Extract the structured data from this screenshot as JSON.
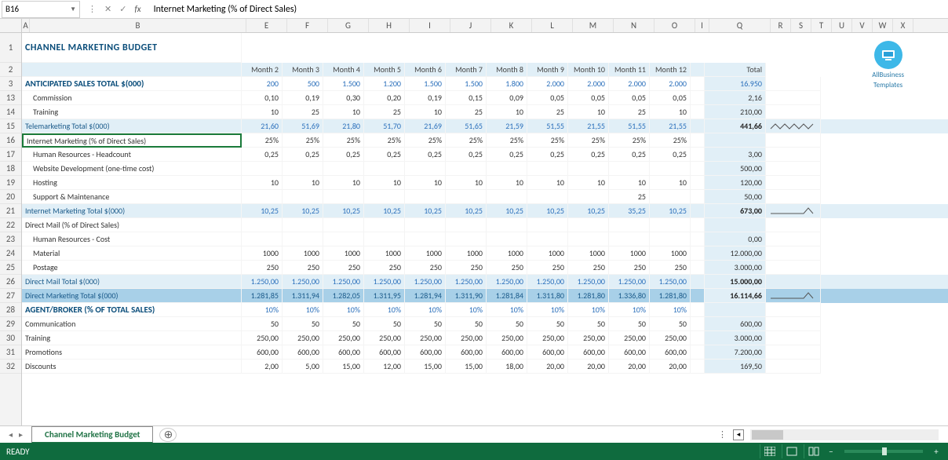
{
  "name_box": "B16",
  "formula_text": "Internet Marketing (% of Direct Sales)",
  "columns": [
    "A",
    "B",
    "E",
    "F",
    "G",
    "H",
    "I",
    "J",
    "K",
    "L",
    "M",
    "N",
    "O",
    "I",
    "Q",
    "R",
    "S",
    "T",
    "U",
    "V",
    "W",
    "X"
  ],
  "col_widths": {
    "A": 10,
    "B": 276,
    "month": 52,
    "gap": 18,
    "total": 78,
    "spark": 70,
    "narrow": 26
  },
  "row_numbers": [
    "1",
    "2",
    "3",
    "13",
    "14",
    "15",
    "16",
    "17",
    "18",
    "19",
    "20",
    "21",
    "22",
    "23",
    "24",
    "25",
    "26",
    "27",
    "28",
    "29",
    "30",
    "31",
    "32"
  ],
  "title": "CHANNEL MARKETING BUDGET",
  "month_headers": [
    "Month 2",
    "Month 3",
    "Month 4",
    "Month 5",
    "Month 6",
    "Month 7",
    "Month 8",
    "Month 9",
    "Month 10",
    "Month 11",
    "Month 12"
  ],
  "total_header": "Total",
  "rows": [
    {
      "label": "ANTICIPATED SALES TOTAL $(000)",
      "style": "section",
      "vals": [
        "200",
        "500",
        "1.500",
        "1.200",
        "1.500",
        "1.500",
        "1.800",
        "2.000",
        "2.000",
        "2.000",
        "2.000"
      ],
      "total": "16.950",
      "blue": true
    },
    {
      "label": "Commission",
      "indent": 1,
      "vals": [
        "0,10",
        "0,19",
        "0,30",
        "0,20",
        "0,19",
        "0,15",
        "0,09",
        "0,05",
        "0,05",
        "0,05",
        "0,05"
      ],
      "total": "2,16"
    },
    {
      "label": "Training",
      "indent": 1,
      "vals": [
        "10",
        "25",
        "10",
        "25",
        "10",
        "25",
        "10",
        "25",
        "10",
        "25",
        "10"
      ],
      "total": "210,00"
    },
    {
      "label": "Telemarketing Total $(000)",
      "style": "subtotal",
      "vals": [
        "21,60",
        "51,69",
        "21,80",
        "51,70",
        "21,69",
        "51,65",
        "21,59",
        "51,55",
        "21,55",
        "51,55",
        "21,55"
      ],
      "total": "441,66",
      "total_bold": true,
      "spark": "zigzag"
    },
    {
      "label": "Internet Marketing (% of Direct Sales)",
      "style": "selected",
      "vals": [
        "25%",
        "25%",
        "25%",
        "25%",
        "25%",
        "25%",
        "25%",
        "25%",
        "25%",
        "25%",
        "25%"
      ],
      "total": ""
    },
    {
      "label": "Human Resources - Headcount",
      "indent": 1,
      "vals": [
        "0,25",
        "0,25",
        "0,25",
        "0,25",
        "0,25",
        "0,25",
        "0,25",
        "0,25",
        "0,25",
        "0,25",
        "0,25"
      ],
      "total": "3,00"
    },
    {
      "label": "Website Development (one-time cost)",
      "indent": 1,
      "vals": [
        "",
        "",
        "",
        "",
        "",
        "",
        "",
        "",
        "",
        "",
        ""
      ],
      "total": "500,00"
    },
    {
      "label": "Hosting",
      "indent": 1,
      "vals": [
        "10",
        "10",
        "10",
        "10",
        "10",
        "10",
        "10",
        "10",
        "10",
        "10",
        "10"
      ],
      "total": "120,00"
    },
    {
      "label": "Support & Maintenance",
      "indent": 1,
      "vals": [
        "",
        "",
        "",
        "",
        "",
        "",
        "",
        "",
        "",
        "25",
        ""
      ],
      "total": "50,00"
    },
    {
      "label": "Internet Marketing Total $(000)",
      "style": "subtotal",
      "vals": [
        "10,25",
        "10,25",
        "10,25",
        "10,25",
        "10,25",
        "10,25",
        "10,25",
        "10,25",
        "10,25",
        "35,25",
        "10,25"
      ],
      "total": "673,00",
      "total_bold": true,
      "spark": "flat-spike"
    },
    {
      "label": "Direct Mail (% of Direct Sales)",
      "vals": [
        "",
        "",
        "",
        "",
        "",
        "",
        "",
        "",
        "",
        "",
        ""
      ],
      "total": ""
    },
    {
      "label": "Human Resources - Cost",
      "indent": 1,
      "vals": [
        "",
        "",
        "",
        "",
        "",
        "",
        "",
        "",
        "",
        "",
        ""
      ],
      "total": "0,00"
    },
    {
      "label": "Material",
      "indent": 1,
      "vals": [
        "1000",
        "1000",
        "1000",
        "1000",
        "1000",
        "1000",
        "1000",
        "1000",
        "1000",
        "1000",
        "1000"
      ],
      "total": "12.000,00"
    },
    {
      "label": "Postage",
      "indent": 1,
      "vals": [
        "250",
        "250",
        "250",
        "250",
        "250",
        "250",
        "250",
        "250",
        "250",
        "250",
        "250"
      ],
      "total": "3.000,00"
    },
    {
      "label": "Direct Mail Total $(000)",
      "style": "subtotal",
      "vals": [
        "1.250,00",
        "1.250,00",
        "1.250,00",
        "1.250,00",
        "1.250,00",
        "1.250,00",
        "1.250,00",
        "1.250,00",
        "1.250,00",
        "1.250,00",
        "1.250,00"
      ],
      "total": "15.000,00",
      "total_bold": true
    },
    {
      "label": "Direct Marketing Total $(000)",
      "style": "grand",
      "vals": [
        "1.281,85",
        "1.311,94",
        "1.282,05",
        "1.311,95",
        "1.281,94",
        "1.311,90",
        "1.281,84",
        "1.311,80",
        "1.281,80",
        "1.336,80",
        "1.281,80"
      ],
      "total": "16.114,66",
      "total_bold": true,
      "spark": "flat-spike"
    },
    {
      "label": "AGENT/BROKER (% OF TOTAL SALES)",
      "style": "section",
      "vals": [
        "10%",
        "10%",
        "10%",
        "10%",
        "10%",
        "10%",
        "10%",
        "10%",
        "10%",
        "10%",
        "10%"
      ],
      "total": ""
    },
    {
      "label": "Communication",
      "vals": [
        "50",
        "50",
        "50",
        "50",
        "50",
        "50",
        "50",
        "50",
        "50",
        "50",
        "50"
      ],
      "total": "600,00"
    },
    {
      "label": "Training",
      "vals": [
        "250,00",
        "250,00",
        "250,00",
        "250,00",
        "250,00",
        "250,00",
        "250,00",
        "250,00",
        "250,00",
        "250,00",
        "250,00"
      ],
      "total": "3.000,00"
    },
    {
      "label": "Promotions",
      "vals": [
        "600,00",
        "600,00",
        "600,00",
        "600,00",
        "600,00",
        "600,00",
        "600,00",
        "600,00",
        "600,00",
        "600,00",
        "600,00"
      ],
      "total": "7.200,00"
    },
    {
      "label": "Discounts",
      "vals": [
        "2,00",
        "5,00",
        "15,00",
        "12,00",
        "15,00",
        "15,00",
        "18,00",
        "20,00",
        "20,00",
        "20,00",
        "20,00"
      ],
      "total": "169,50"
    }
  ],
  "logo_line1": "AllBusiness",
  "logo_line2": "Templates",
  "sheet_tab": "Channel Marketing Budget",
  "status_text": "READY",
  "colors": {
    "header_blue": "#0a4d7a",
    "value_blue": "#2a6fbb",
    "subtotal_bg": "#e1eff7",
    "grand_bg": "#a8d0e8",
    "status_green": "#0f6b3e",
    "tab_green": "#217346"
  }
}
